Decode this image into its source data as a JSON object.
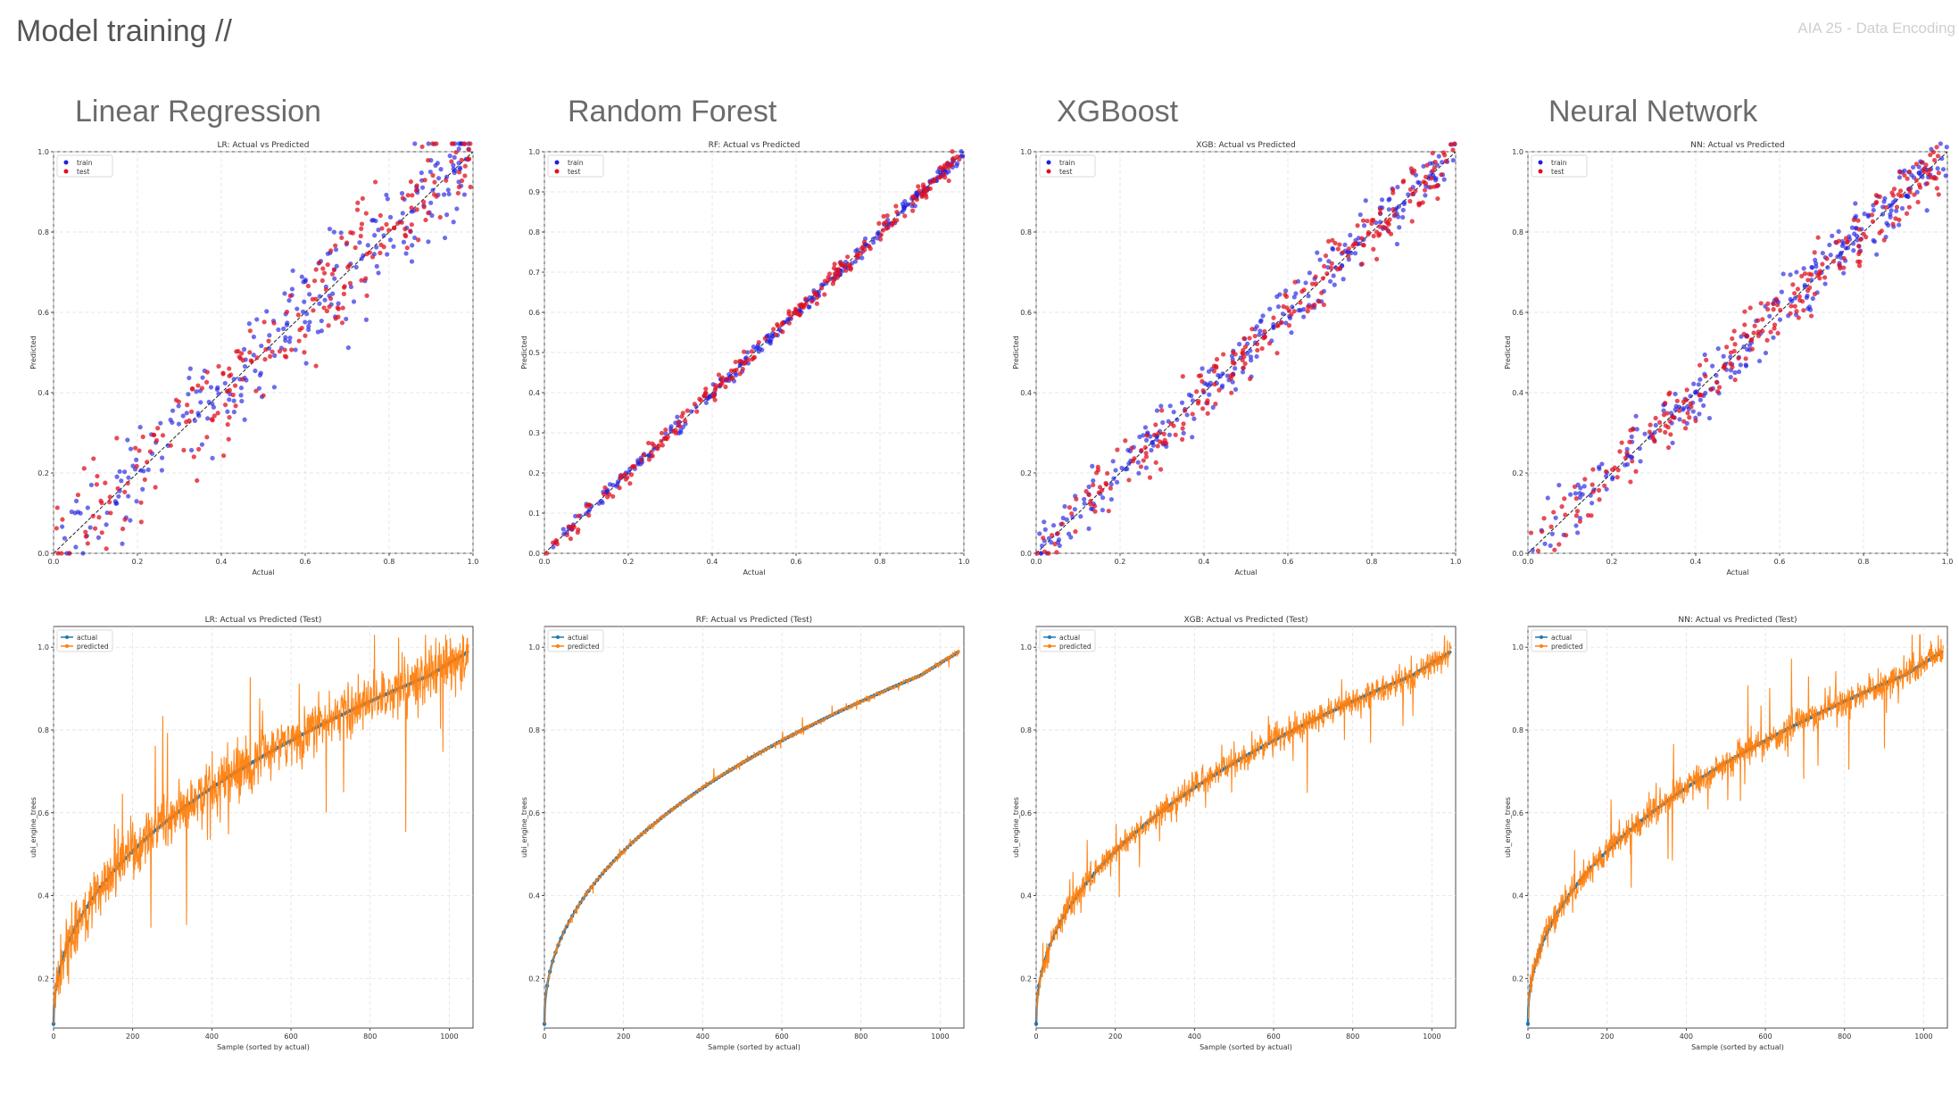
{
  "slide": {
    "title": "Model training //",
    "tag": "AIA 25 - Data Encoding"
  },
  "models": [
    {
      "name": "Linear Regression"
    },
    {
      "name": "Random Forest"
    },
    {
      "name": "XGBoost"
    },
    {
      "name": "Neural Network"
    }
  ],
  "colors": {
    "train": "#1f1fe0",
    "test": "#e0101e",
    "actual": "#1f77b4",
    "predicted": "#ff7f0e"
  },
  "chart_data": [
    {
      "type": "scatter",
      "title": "LR: Actual vs Predicted",
      "xlabel": "Actual",
      "ylabel": "Predicted",
      "xlim": [
        0,
        1
      ],
      "ylim": [
        0,
        1
      ],
      "xticks": [
        0.0,
        0.2,
        0.4,
        0.6,
        0.8,
        1.0
      ],
      "yticks": [
        0.0,
        0.2,
        0.4,
        0.6,
        0.8,
        1.0
      ],
      "legend": {
        "position": "top-left",
        "entries": [
          "train",
          "test"
        ]
      },
      "series": [
        {
          "name": "train",
          "noise": 0.09
        },
        {
          "name": "test",
          "noise": 0.09
        }
      ],
      "diagonal": true,
      "grid": true
    },
    {
      "type": "scatter",
      "title": "RF: Actual vs Predicted",
      "xlabel": "Actual",
      "ylabel": "Predicted",
      "xlim": [
        0,
        1
      ],
      "ylim": [
        0,
        1
      ],
      "xticks": [
        0.0,
        0.2,
        0.4,
        0.6,
        0.8,
        1.0
      ],
      "yticks": [
        0.0,
        0.1,
        0.2,
        0.3,
        0.4,
        0.5,
        0.6,
        0.7,
        0.8,
        0.9,
        1.0
      ],
      "legend": {
        "position": "top-left",
        "entries": [
          "train",
          "test"
        ]
      },
      "series": [
        {
          "name": "train",
          "noise": 0.012
        },
        {
          "name": "test",
          "noise": 0.018
        }
      ],
      "diagonal": true,
      "grid": true
    },
    {
      "type": "scatter",
      "title": "XGB: Actual vs Predicted",
      "xlabel": "Actual",
      "ylabel": "Predicted",
      "xlim": [
        0,
        1
      ],
      "ylim": [
        0,
        1
      ],
      "xticks": [
        0.0,
        0.2,
        0.4,
        0.6,
        0.8,
        1.0
      ],
      "yticks": [
        0.0,
        0.2,
        0.4,
        0.6,
        0.8,
        1.0
      ],
      "legend": {
        "position": "top-left",
        "entries": [
          "train",
          "test"
        ]
      },
      "series": [
        {
          "name": "train",
          "noise": 0.05
        },
        {
          "name": "test",
          "noise": 0.05
        }
      ],
      "diagonal": true,
      "grid": true
    },
    {
      "type": "scatter",
      "title": "NN: Actual vs Predicted",
      "xlabel": "Actual",
      "ylabel": "Predicted",
      "xlim": [
        0,
        1
      ],
      "ylim": [
        0,
        1
      ],
      "xticks": [
        0.0,
        0.2,
        0.4,
        0.6,
        0.8,
        1.0
      ],
      "yticks": [
        0.0,
        0.2,
        0.4,
        0.6,
        0.8,
        1.0
      ],
      "legend": {
        "position": "top-left",
        "entries": [
          "train",
          "test"
        ]
      },
      "series": [
        {
          "name": "train",
          "noise": 0.055
        },
        {
          "name": "test",
          "noise": 0.055
        }
      ],
      "diagonal": true,
      "grid": true
    },
    {
      "type": "line",
      "title": "LR: Actual vs Predicted (Test)",
      "xlabel": "Sample (sorted by actual)",
      "ylabel": "ubi_engine_trees",
      "xlim": [
        0,
        1060
      ],
      "ylim": [
        0.08,
        1.05
      ],
      "xticks": [
        0,
        200,
        400,
        600,
        800,
        1000
      ],
      "yticks": [
        0.2,
        0.4,
        0.6,
        0.8,
        1.0
      ],
      "legend": {
        "position": "top-left",
        "entries": [
          "actual",
          "predicted"
        ]
      },
      "series": [
        {
          "name": "actual"
        },
        {
          "name": "predicted",
          "noise": 0.08
        }
      ],
      "grid": true
    },
    {
      "type": "line",
      "title": "RF: Actual vs Predicted (Test)",
      "xlabel": "Sample (sorted by actual)",
      "ylabel": "ubi_engine_trees",
      "xlim": [
        0,
        1060
      ],
      "ylim": [
        0.08,
        1.05
      ],
      "xticks": [
        0,
        200,
        400,
        600,
        800,
        1000
      ],
      "yticks": [
        0.2,
        0.4,
        0.6,
        0.8,
        1.0
      ],
      "legend": {
        "position": "top-left",
        "entries": [
          "actual",
          "predicted"
        ]
      },
      "series": [
        {
          "name": "actual"
        },
        {
          "name": "predicted",
          "noise": 0.008
        }
      ],
      "grid": true
    },
    {
      "type": "line",
      "title": "XGB: Actual vs Predicted (Test)",
      "xlabel": "Sample (sorted by actual)",
      "ylabel": "ubi_engine_trees",
      "xlim": [
        0,
        1060
      ],
      "ylim": [
        0.08,
        1.05
      ],
      "xticks": [
        0,
        200,
        400,
        600,
        800,
        1000
      ],
      "yticks": [
        0.2,
        0.4,
        0.6,
        0.8,
        1.0
      ],
      "legend": {
        "position": "top-left",
        "entries": [
          "actual",
          "predicted"
        ]
      },
      "series": [
        {
          "name": "actual"
        },
        {
          "name": "predicted",
          "noise": 0.04
        }
      ],
      "grid": true
    },
    {
      "type": "line",
      "title": "NN: Actual vs Predicted (Test)",
      "xlabel": "Sample (sorted by actual)",
      "ylabel": "ubi_engine_trees",
      "xlim": [
        0,
        1060
      ],
      "ylim": [
        0.08,
        1.05
      ],
      "xticks": [
        0,
        200,
        400,
        600,
        800,
        1000
      ],
      "yticks": [
        0.2,
        0.4,
        0.6,
        0.8,
        1.0
      ],
      "legend": {
        "position": "top-left",
        "entries": [
          "actual",
          "predicted"
        ]
      },
      "series": [
        {
          "name": "actual"
        },
        {
          "name": "predicted",
          "noise": 0.045
        }
      ],
      "grid": true
    }
  ]
}
